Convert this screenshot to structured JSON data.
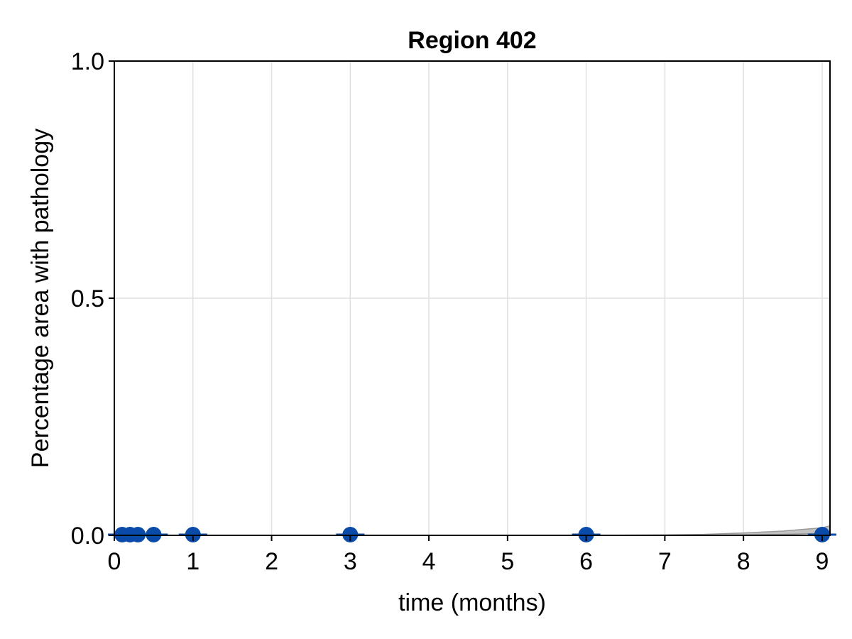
{
  "chart_data": {
    "type": "scatter",
    "title": "Region 402",
    "xlabel": "time (months)",
    "ylabel": "Percentage area with pathology",
    "xlim": [
      0,
      9.1
    ],
    "ylim": [
      0,
      1
    ],
    "x_ticks": [
      "0",
      "1",
      "2",
      "3",
      "4",
      "5",
      "6",
      "7",
      "8",
      "9"
    ],
    "y_ticks": [
      "0.0",
      "0.5",
      "1.0"
    ],
    "grid": true,
    "series": [
      {
        "x": [
          0.1,
          0.2,
          0.3,
          0.5,
          1,
          3,
          6,
          9
        ],
        "y": [
          0,
          0,
          0,
          0,
          0,
          0,
          0,
          0
        ],
        "error": [
          0,
          0,
          0,
          0,
          0.002,
          0.002,
          0.002,
          0.001
        ]
      }
    ],
    "model_band": {
      "x": [
        0,
        6,
        7,
        7.5,
        8,
        8.5,
        9,
        9.1
      ],
      "lower": [
        0,
        0,
        0,
        0,
        0.001,
        0.002,
        0.004,
        0.005
      ],
      "upper": [
        0,
        0,
        0.001,
        0.002,
        0.005,
        0.009,
        0.016,
        0.02
      ]
    },
    "colors": {
      "points": "#0a4aa8",
      "band": "#9a9a9a",
      "grid": "#e0e0e0"
    }
  }
}
